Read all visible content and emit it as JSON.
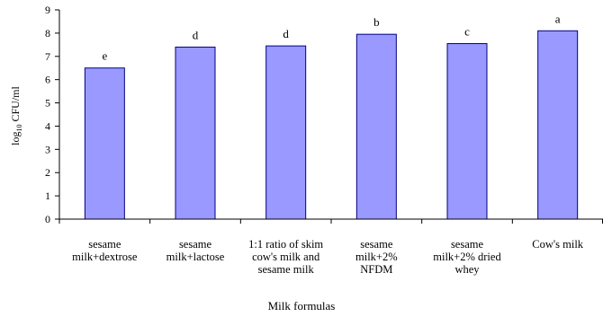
{
  "chart_data": {
    "type": "bar",
    "categories": [
      "sesame\nmilk+dextrose",
      "sesame\nmilk+lactose",
      "1:1 ratio of skim\ncow's milk and\nsesame milk",
      "sesame\nmilk+2%\nNFDM",
      "sesame\nmilk+2% dried\nwhey",
      "Cow's milk"
    ],
    "values": [
      6.5,
      7.4,
      7.45,
      7.95,
      7.55,
      8.1
    ],
    "bar_labels": [
      "e",
      "d",
      "d",
      "b",
      "c",
      "a"
    ],
    "y_ticks": [
      "0",
      "1",
      "2",
      "3",
      "4",
      "5",
      "6",
      "7",
      "8",
      "9"
    ],
    "ylabel_prefix": "log",
    "ylabel_sub": "10",
    "ylabel_suffix": " CFU/ml",
    "xlabel": "Milk formulas",
    "ylim": [
      0,
      9
    ],
    "bar_color": "#9999ff",
    "bar_edge_color": "#000080",
    "grid": false,
    "legend": "none"
  }
}
